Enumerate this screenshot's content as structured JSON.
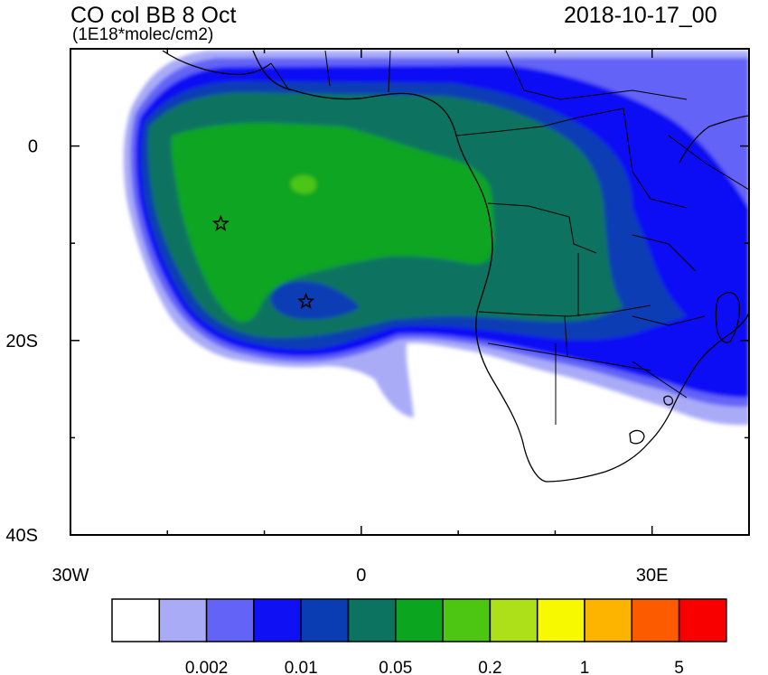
{
  "title": "CO col BB 8 Oct",
  "units": "(1E18*molec/cm2)",
  "timestamp": "2018-10-17_00",
  "map": {
    "lon_range": [
      -30,
      40
    ],
    "lat_range": [
      -40,
      10
    ],
    "lon_ticks": [
      {
        "value": -30,
        "label": "30W"
      },
      {
        "value": 0,
        "label": "0"
      },
      {
        "value": 30,
        "label": "30E"
      }
    ],
    "lat_ticks": [
      {
        "value": 0,
        "label": "0"
      },
      {
        "value": -20,
        "label": "20S"
      },
      {
        "value": -40,
        "label": "40S"
      }
    ],
    "markers": [
      {
        "type": "star",
        "lon": -14.5,
        "lat": -8
      },
      {
        "type": "star",
        "lon": -5.7,
        "lat": -16
      }
    ]
  },
  "colorbar": {
    "colors": [
      "#ffffff",
      "#a9abf7",
      "#6363f7",
      "#1010f5",
      "#0a3cb4",
      "#0b7360",
      "#0ba520",
      "#4cc513",
      "#aee01a",
      "#f6f900",
      "#fdb400",
      "#fc5b00",
      "#f80000"
    ],
    "labels": [
      {
        "after_box": 2,
        "text": "0.002"
      },
      {
        "after_box": 4,
        "text": "0.01"
      },
      {
        "after_box": 6,
        "text": "0.05"
      },
      {
        "after_box": 8,
        "text": "0.2"
      },
      {
        "after_box": 10,
        "text": "1"
      },
      {
        "after_box": 12,
        "text": "5"
      }
    ]
  },
  "chart_data": {
    "type": "heatmap",
    "title": "CO col BB 8 Oct",
    "subtitle": "(1E18*molec/cm2)",
    "timestamp": "2018-10-17_00",
    "xlim": [
      -30,
      40
    ],
    "ylim": [
      -40,
      10
    ],
    "colorbar_levels": [
      0.002,
      0.01,
      0.05,
      0.2,
      1,
      5
    ],
    "regions": [
      {
        "description": "plume core",
        "lon": [
          -20,
          13
        ],
        "lat": [
          -18,
          -2
        ],
        "level": "0.05-0.2"
      },
      {
        "description": "outer plume",
        "lon": [
          -24,
          38
        ],
        "lat": [
          -23,
          8
        ],
        "level": "0.005-0.05"
      }
    ]
  }
}
